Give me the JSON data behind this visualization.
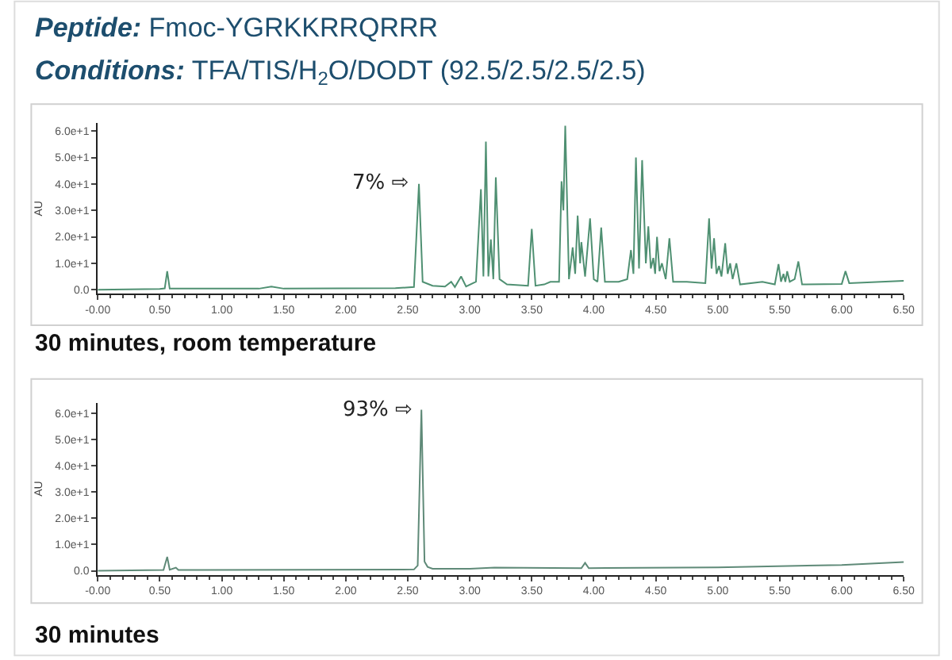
{
  "chart_data": [
    {
      "type": "line",
      "title": "Peptide: Fmoc-YGRKKRRQRRR",
      "subtitle": "Conditions: TFA/TIS/H$_{2}$O/DODT (92.5/2.5/2.5/2.5)",
      "ylabel": "AU",
      "annotations": [
        {
          "text": "7% ⇨",
          "x": 2.59,
          "y": 40
        },
        "30 minutes, room temperature"
      ],
      "color": "#4f9072",
      "x": [
        0,
        0.5,
        0.54,
        0.56,
        0.58,
        1.3,
        1.4,
        1.5,
        2.4,
        2.55,
        2.59,
        2.62,
        2.7,
        2.8,
        2.85,
        2.88,
        2.93,
        2.97,
        3.05,
        3.09,
        3.11,
        3.13,
        3.15,
        3.17,
        3.19,
        3.21,
        3.24,
        3.3,
        3.47,
        3.5,
        3.53,
        3.6,
        3.65,
        3.72,
        3.74,
        3.755,
        3.77,
        3.8,
        3.83,
        3.85,
        3.87,
        3.89,
        3.9,
        3.93,
        3.97,
        4.0,
        4.03,
        4.06,
        4.09,
        4.2,
        4.27,
        4.3,
        4.32,
        4.34,
        4.365,
        4.39,
        4.42,
        4.44,
        4.46,
        4.48,
        4.495,
        4.51,
        4.53,
        4.55,
        4.58,
        4.61,
        4.64,
        4.75,
        4.9,
        4.93,
        4.95,
        4.97,
        4.99,
        5.01,
        5.03,
        5.06,
        5.08,
        5.1,
        5.12,
        5.15,
        5.18,
        5.36,
        5.46,
        5.49,
        5.51,
        5.53,
        5.545,
        5.56,
        5.58,
        5.62,
        5.65,
        5.68,
        6.0,
        6.03,
        6.06,
        6.5
      ],
      "values": [
        0,
        0.3,
        0.5,
        7,
        0.4,
        0.4,
        1.2,
        0.4,
        0.6,
        1,
        40,
        3,
        1.5,
        1.2,
        3,
        1,
        5,
        1.2,
        3,
        38,
        5,
        56,
        5,
        19,
        4,
        42.5,
        4,
        2,
        1.5,
        23,
        1.5,
        2,
        3,
        3,
        41,
        30,
        62,
        4,
        16,
        6,
        28,
        10,
        18,
        5,
        27,
        4,
        3,
        23.5,
        3,
        3,
        4,
        15,
        6,
        50,
        8,
        49,
        10,
        24,
        8,
        12,
        6,
        20,
        7,
        10,
        4,
        19.5,
        3,
        3,
        2.5,
        27,
        8,
        19.5,
        6,
        9,
        5,
        17.6,
        6,
        10,
        4,
        10,
        2,
        3,
        2,
        9.7,
        3,
        6,
        3,
        7,
        3,
        4,
        10.7,
        2,
        2.2,
        7,
        2.5,
        3.4
      ],
      "xlim": [
        0,
        6.5
      ],
      "ylim": [
        -1.5,
        63
      ],
      "xticks": [
        {
          "value": 0,
          "label": "-0.00"
        },
        {
          "value": 0.5,
          "label": "0.50"
        },
        {
          "value": 1,
          "label": "1.00"
        },
        {
          "value": 1.5,
          "label": "1.50"
        },
        {
          "value": 2,
          "label": "2.00"
        },
        {
          "value": 2.5,
          "label": "2.50"
        },
        {
          "value": 3,
          "label": "3.00"
        },
        {
          "value": 3.5,
          "label": "3.50"
        },
        {
          "value": 4,
          "label": "4.00"
        },
        {
          "value": 4.5,
          "label": "4.50"
        },
        {
          "value": 5,
          "label": "5.00"
        },
        {
          "value": 5.5,
          "label": "5.50"
        },
        {
          "value": 6,
          "label": "6.00"
        },
        {
          "value": 6.5,
          "label": "6.50"
        }
      ],
      "yticks": [
        {
          "value": 0,
          "label": "0.0"
        },
        {
          "value": 10,
          "label": "1.0e+1"
        },
        {
          "value": 20,
          "label": "2.0e+1"
        },
        {
          "value": 30,
          "label": "3.0e+1"
        },
        {
          "value": 40,
          "label": "4.0e+1"
        },
        {
          "value": 50,
          "label": "5.0e+1"
        },
        {
          "value": 60,
          "label": "6.0e+1"
        }
      ]
    },
    {
      "type": "line",
      "ylabel": "AU",
      "annotations": [
        {
          "text": "93% ⇨",
          "x": 2.61,
          "y": 61.3
        },
        "30 minutes"
      ],
      "color": "#5f8a78",
      "x": [
        0,
        0.53,
        0.56,
        0.58,
        0.63,
        0.65,
        2.55,
        2.58,
        2.61,
        2.635,
        2.66,
        2.7,
        3.0,
        3.2,
        3.9,
        3.93,
        3.96,
        5.0,
        6.0,
        6.5
      ],
      "values": [
        0,
        0.3,
        5.3,
        0.4,
        1.2,
        0.3,
        0.5,
        2,
        61.3,
        3.5,
        1.5,
        0.8,
        0.8,
        1.2,
        1,
        3,
        1,
        1.3,
        2.2,
        3.3
      ],
      "xlim": [
        0,
        6.5
      ],
      "ylim": [
        -1.5,
        64
      ],
      "xticks": [
        {
          "value": 0,
          "label": "-0.00"
        },
        {
          "value": 0.5,
          "label": "0.50"
        },
        {
          "value": 1,
          "label": "1.00"
        },
        {
          "value": 1.5,
          "label": "1.50"
        },
        {
          "value": 2,
          "label": "2.00"
        },
        {
          "value": 2.5,
          "label": "2.50"
        },
        {
          "value": 3,
          "label": "3.00"
        },
        {
          "value": 3.5,
          "label": "3.50"
        },
        {
          "value": 4,
          "label": "4.00"
        },
        {
          "value": 4.5,
          "label": "4.50"
        },
        {
          "value": 5,
          "label": "5.00"
        },
        {
          "value": 5.5,
          "label": "5.50"
        },
        {
          "value": 6,
          "label": "6.00"
        },
        {
          "value": 6.5,
          "label": "6.50"
        }
      ],
      "yticks": [
        {
          "value": 0,
          "label": "0.0"
        },
        {
          "value": 10,
          "label": "1.0e+1"
        },
        {
          "value": 20,
          "label": "2.0e+1"
        },
        {
          "value": 30,
          "label": "3.0e+1"
        },
        {
          "value": 40,
          "label": "4.0e+1"
        },
        {
          "value": 50,
          "label": "5.0e+1"
        },
        {
          "value": 60,
          "label": "6.0e+1"
        }
      ]
    }
  ]
}
